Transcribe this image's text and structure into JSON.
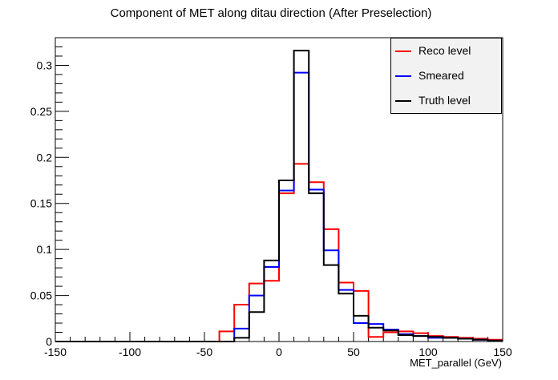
{
  "chart_data": {
    "type": "line",
    "title": "Component of MET along ditau direction (After Preselection)",
    "xlabel": "MET_parallel (GeV)",
    "ylabel": "",
    "xlim": [
      -150,
      150
    ],
    "ylim": [
      0,
      0.33
    ],
    "xticks": [
      -150,
      -100,
      -50,
      0,
      50,
      100,
      150
    ],
    "yticks": [
      0,
      0.05,
      0.1,
      0.15,
      0.2,
      0.25,
      0.3
    ],
    "ytick_labels": [
      "0",
      "0.05",
      "0.1",
      "0.15",
      "0.2",
      "0.25",
      "0.3"
    ],
    "bin_edges": [
      -150,
      -140,
      -130,
      -120,
      -110,
      -100,
      -90,
      -80,
      -70,
      -60,
      -50,
      -40,
      -30,
      -20,
      -10,
      0,
      10,
      20,
      30,
      40,
      50,
      60,
      70,
      80,
      90,
      100,
      110,
      120,
      130,
      140,
      150
    ],
    "legend_position": "top-right",
    "grid": false,
    "series": [
      {
        "name": "Reco level",
        "color": "#ff0000",
        "values": [
          0,
          0,
          0,
          0,
          0,
          0,
          0,
          0,
          0,
          0,
          0,
          0.011,
          0.04,
          0.063,
          0.066,
          0.161,
          0.193,
          0.173,
          0.122,
          0.064,
          0.055,
          0.005,
          0.01,
          0.011,
          0.009,
          0.006,
          0.005,
          0.004,
          0.003,
          0.002
        ]
      },
      {
        "name": "Smeared",
        "color": "#0000ff",
        "values": [
          0,
          0,
          0,
          0,
          0,
          0,
          0,
          0,
          0,
          0,
          0,
          0,
          0.014,
          0.05,
          0.081,
          0.164,
          0.292,
          0.165,
          0.099,
          0.056,
          0.02,
          0.019,
          0.013,
          0.008,
          0.006,
          0.004,
          0.004,
          0.003,
          0.002,
          0.001
        ]
      },
      {
        "name": "Truth level",
        "color": "#000000",
        "values": [
          0,
          0,
          0,
          0,
          0,
          0,
          0,
          0,
          0,
          0,
          0,
          0,
          0.004,
          0.032,
          0.088,
          0.175,
          0.316,
          0.161,
          0.083,
          0.052,
          0.028,
          0.015,
          0.012,
          0.007,
          0.006,
          0.005,
          0.004,
          0.003,
          0.002,
          0.001
        ]
      }
    ]
  }
}
